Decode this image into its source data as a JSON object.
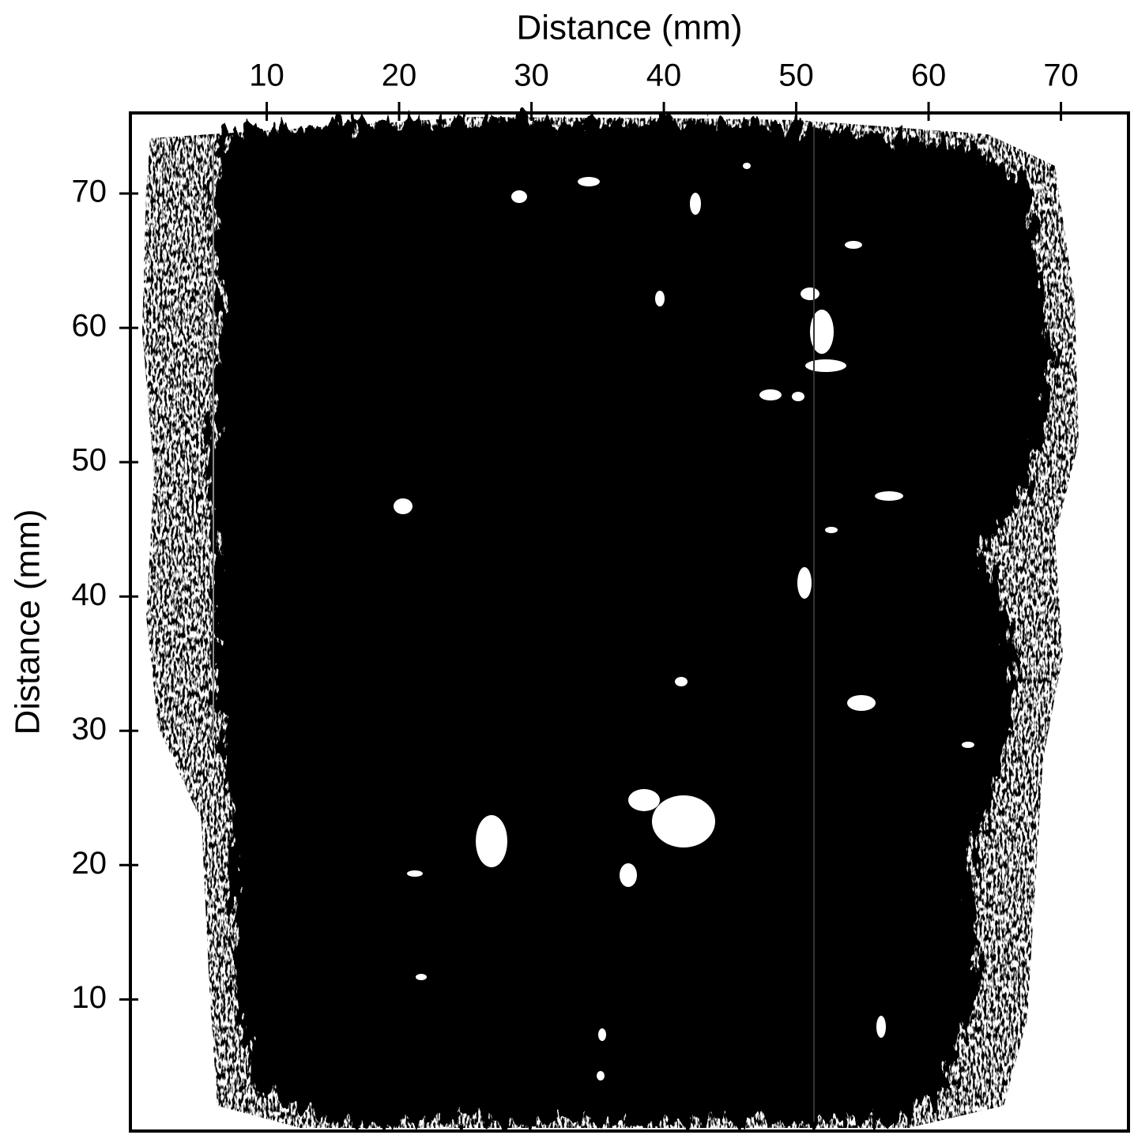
{
  "chart_data": {
    "type": "image",
    "xlabel": "Distance (mm)",
    "ylabel": "Distance (mm)",
    "xlim": [
      -0.3,
      75.1
    ],
    "ylim": [
      0.2,
      76
    ],
    "xticks": [
      10,
      20,
      30,
      40,
      50,
      60,
      70
    ],
    "yticks": [
      10,
      20,
      30,
      40,
      50,
      60,
      70
    ]
  }
}
